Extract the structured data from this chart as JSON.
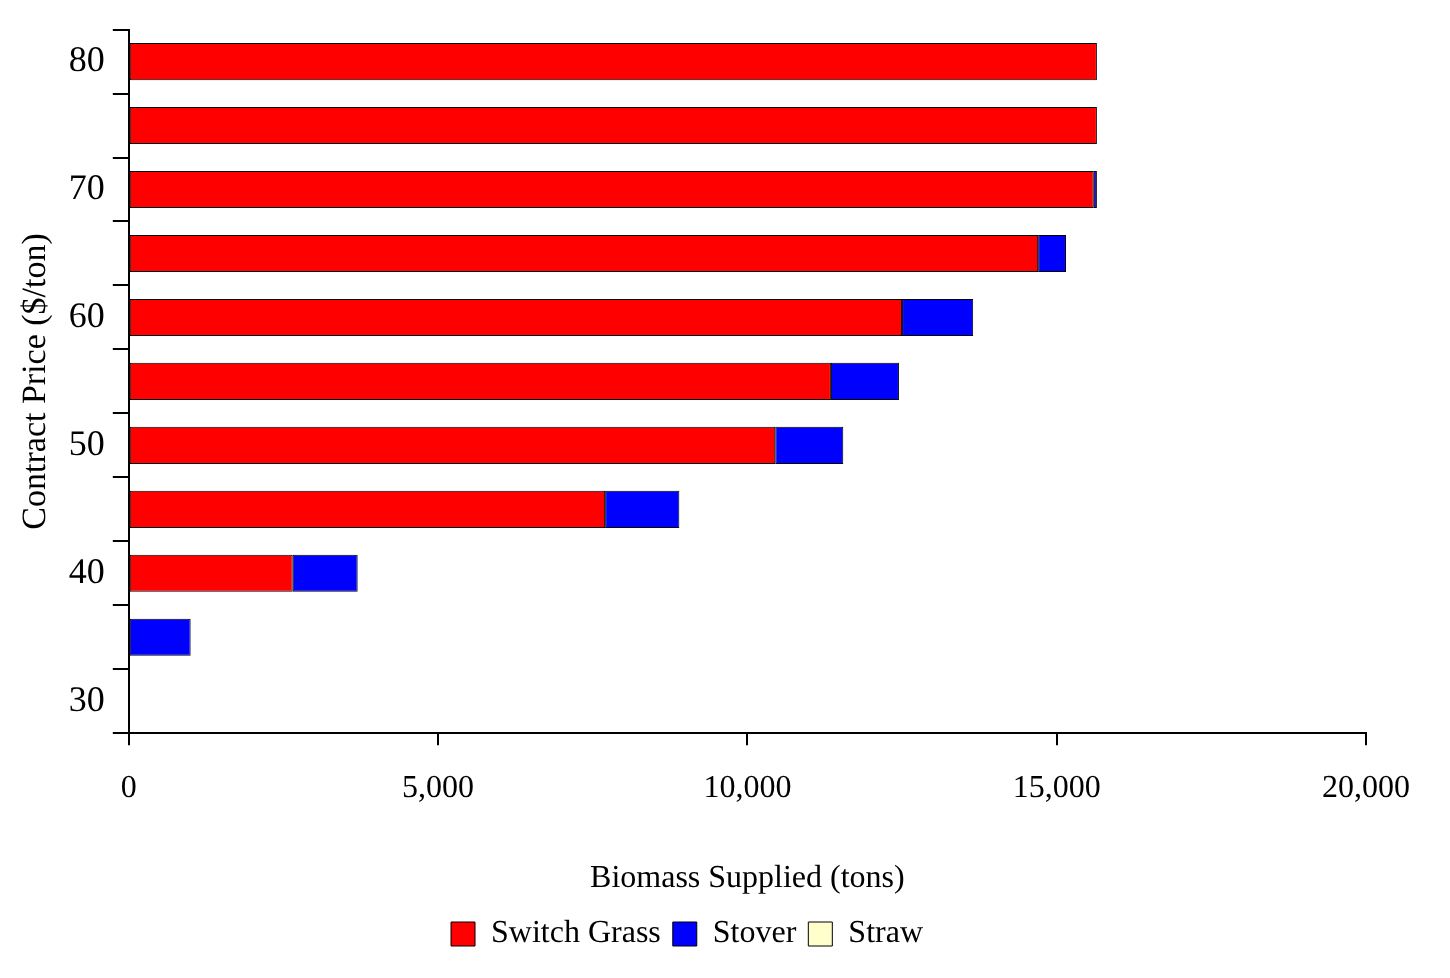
{
  "chart_data": {
    "type": "bar",
    "orientation": "horizontal",
    "stacked": true,
    "xlabel": "Biomass Supplied (tons)",
    "ylabel": "Contract Price ($/ton)",
    "categories": [
      "80",
      null,
      "70",
      null,
      "60",
      null,
      "50",
      null,
      "40",
      null,
      "30"
    ],
    "series": [
      {
        "name": "Switch Grass",
        "color": "#ff0000",
        "values": [
          15650,
          15650,
          15600,
          14700,
          12500,
          11350,
          10450,
          7700,
          2650,
          null,
          null
        ]
      },
      {
        "name": "Stover",
        "color": "#0000ff",
        "values": [
          null,
          null,
          50,
          450,
          1150,
          1100,
          1100,
          1200,
          1050,
          1000,
          null
        ]
      },
      {
        "name": "Straw",
        "color": "#ffffcc",
        "values": [
          null,
          null,
          null,
          null,
          null,
          null,
          null,
          null,
          null,
          null,
          null
        ]
      }
    ],
    "xlim": [
      0,
      20000
    ],
    "xticks": [
      0,
      {
        "value": 5000,
        "label": "5,000"
      },
      {
        "value": 10000,
        "label": "10,000"
      },
      {
        "value": 15000,
        "label": "15,000"
      },
      {
        "value": 20000,
        "label": "20,000"
      }
    ],
    "grid": false,
    "legend": "bottom"
  }
}
